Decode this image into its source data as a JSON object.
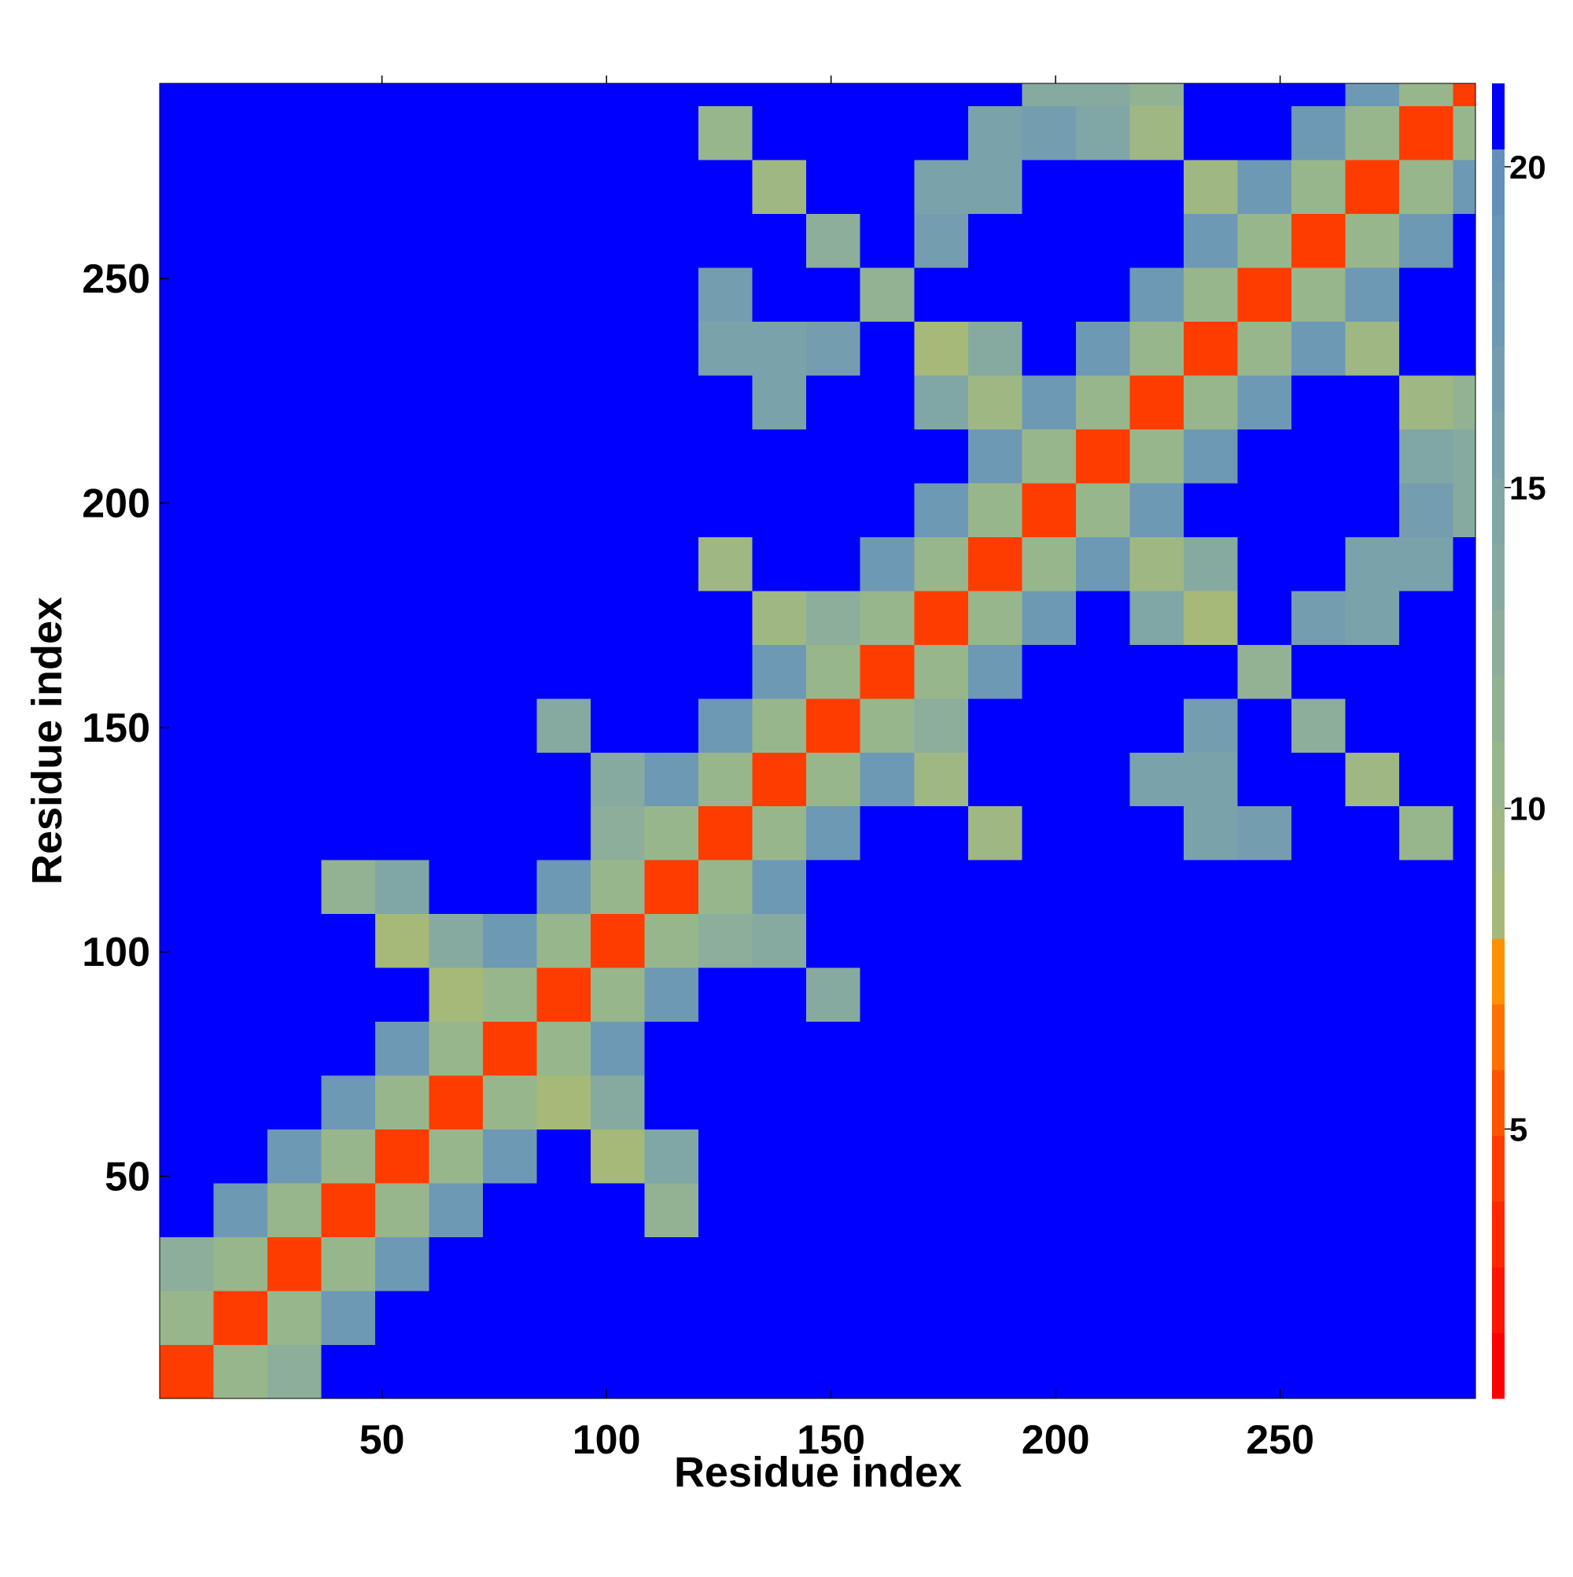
{
  "chart_data": {
    "type": "heatmap",
    "x_label": "Residue index",
    "y_label": "Residue index",
    "xlim": [
      0.5,
      293.5
    ],
    "ylim": [
      0.5,
      293.5
    ],
    "xticks": [
      50,
      100,
      150,
      200,
      250
    ],
    "yticks": [
      50,
      100,
      150,
      200,
      250
    ],
    "x_bins": [
      0.5,
      12.5,
      24.5,
      36.5,
      48.5,
      60.5,
      72.5,
      84.5,
      96.5,
      108.5,
      120.5,
      132.5,
      144.5,
      156.5,
      168.5,
      180.5,
      192.5,
      204.5,
      216.5,
      228.5,
      240.5,
      252.5,
      264.5,
      276.5,
      288.5,
      293.5
    ],
    "y_bins": [
      0.5,
      12.5,
      24.5,
      36.5,
      48.5,
      60.5,
      72.5,
      84.5,
      96.5,
      108.5,
      120.5,
      132.5,
      144.5,
      156.5,
      168.5,
      180.5,
      192.5,
      204.5,
      216.5,
      228.5,
      240.5,
      252.5,
      264.5,
      276.5,
      288.5,
      293.5
    ],
    "values": [
      [
        4,
        11,
        13,
        21,
        21,
        21,
        21,
        21,
        21,
        21,
        21,
        21,
        21,
        21,
        21,
        21,
        21,
        21,
        21,
        21,
        21,
        21,
        21,
        21,
        21
      ],
      [
        11,
        4,
        11,
        18,
        21,
        21,
        21,
        21,
        21,
        21,
        21,
        21,
        21,
        21,
        21,
        21,
        21,
        21,
        21,
        21,
        21,
        21,
        21,
        21,
        21
      ],
      [
        13,
        11,
        4,
        11,
        18,
        21,
        21,
        21,
        21,
        21,
        21,
        21,
        21,
        21,
        21,
        21,
        21,
        21,
        21,
        21,
        21,
        21,
        21,
        21,
        21
      ],
      [
        21,
        18,
        11,
        4,
        11,
        18,
        21,
        21,
        21,
        12,
        21,
        21,
        21,
        21,
        21,
        21,
        21,
        21,
        21,
        21,
        21,
        21,
        21,
        21,
        21
      ],
      [
        21,
        21,
        18,
        11,
        4,
        11,
        18,
        21,
        8,
        15,
        21,
        21,
        21,
        21,
        21,
        21,
        21,
        21,
        21,
        21,
        21,
        21,
        21,
        21,
        21
      ],
      [
        21,
        21,
        21,
        18,
        11,
        4,
        11,
        9,
        14,
        21,
        21,
        21,
        21,
        21,
        21,
        21,
        21,
        21,
        21,
        21,
        21,
        21,
        21,
        21,
        21
      ],
      [
        21,
        21,
        21,
        21,
        18,
        11,
        4,
        11,
        18,
        21,
        21,
        21,
        21,
        21,
        21,
        21,
        21,
        21,
        21,
        21,
        21,
        21,
        21,
        21,
        21
      ],
      [
        21,
        21,
        21,
        21,
        21,
        9,
        11,
        4,
        11,
        18,
        21,
        21,
        14,
        21,
        21,
        21,
        21,
        21,
        21,
        21,
        21,
        21,
        21,
        21,
        21
      ],
      [
        21,
        21,
        21,
        21,
        8,
        14,
        18,
        11,
        4,
        11,
        13,
        14,
        21,
        21,
        21,
        21,
        21,
        21,
        21,
        21,
        21,
        21,
        21,
        21,
        21
      ],
      [
        21,
        21,
        21,
        12,
        15,
        21,
        21,
        18,
        11,
        4,
        11,
        18,
        21,
        21,
        21,
        21,
        21,
        21,
        21,
        21,
        21,
        21,
        21,
        21,
        21
      ],
      [
        21,
        21,
        21,
        21,
        21,
        21,
        21,
        21,
        13,
        11,
        4,
        11,
        18,
        21,
        21,
        10,
        21,
        21,
        21,
        16,
        17,
        21,
        21,
        11,
        21
      ],
      [
        21,
        21,
        21,
        21,
        21,
        21,
        21,
        21,
        14,
        18,
        11,
        4,
        11,
        18,
        10,
        21,
        21,
        21,
        16,
        16,
        21,
        21,
        10,
        21,
        21
      ],
      [
        21,
        21,
        21,
        21,
        21,
        21,
        21,
        14,
        21,
        21,
        18,
        11,
        4,
        11,
        13,
        21,
        21,
        21,
        21,
        17,
        21,
        13,
        21,
        21,
        21
      ],
      [
        21,
        21,
        21,
        21,
        21,
        21,
        21,
        21,
        21,
        21,
        21,
        18,
        11,
        4,
        11,
        18,
        21,
        21,
        21,
        21,
        12,
        21,
        21,
        21,
        21
      ],
      [
        21,
        21,
        21,
        21,
        21,
        21,
        21,
        21,
        21,
        21,
        21,
        10,
        13,
        11,
        4,
        11,
        18,
        21,
        15,
        9,
        21,
        17,
        16,
        21,
        21
      ],
      [
        21,
        21,
        21,
        21,
        21,
        21,
        21,
        21,
        21,
        21,
        10,
        21,
        21,
        18,
        11,
        4,
        11,
        18,
        10,
        14,
        21,
        21,
        16,
        16,
        21
      ],
      [
        21,
        21,
        21,
        21,
        21,
        21,
        21,
        21,
        21,
        21,
        21,
        21,
        21,
        21,
        18,
        11,
        4,
        11,
        18,
        21,
        21,
        21,
        21,
        17,
        14
      ],
      [
        21,
        21,
        21,
        21,
        21,
        21,
        21,
        21,
        21,
        21,
        21,
        21,
        21,
        21,
        21,
        18,
        11,
        4,
        11,
        18,
        21,
        21,
        21,
        15,
        14
      ],
      [
        21,
        21,
        21,
        21,
        21,
        21,
        21,
        21,
        21,
        21,
        21,
        16,
        21,
        21,
        15,
        10,
        18,
        11,
        4,
        11,
        18,
        21,
        21,
        10,
        12
      ],
      [
        21,
        21,
        21,
        21,
        21,
        21,
        21,
        21,
        21,
        21,
        16,
        16,
        17,
        21,
        9,
        14,
        21,
        18,
        11,
        4,
        11,
        18,
        10,
        21,
        21
      ],
      [
        21,
        21,
        21,
        21,
        21,
        21,
        21,
        21,
        21,
        21,
        17,
        21,
        21,
        12,
        21,
        21,
        21,
        21,
        18,
        11,
        4,
        11,
        18,
        21,
        21
      ],
      [
        21,
        21,
        21,
        21,
        21,
        21,
        21,
        21,
        21,
        21,
        21,
        21,
        13,
        21,
        17,
        21,
        21,
        21,
        21,
        18,
        11,
        4,
        11,
        18,
        21
      ],
      [
        21,
        21,
        21,
        21,
        21,
        21,
        21,
        21,
        21,
        21,
        21,
        10,
        21,
        21,
        16,
        16,
        21,
        21,
        21,
        10,
        18,
        11,
        4,
        11,
        18
      ],
      [
        21,
        21,
        21,
        21,
        21,
        21,
        21,
        21,
        21,
        21,
        11,
        21,
        21,
        21,
        21,
        16,
        17,
        15,
        10,
        21,
        21,
        18,
        11,
        4,
        11
      ],
      [
        21,
        21,
        21,
        21,
        21,
        21,
        21,
        21,
        21,
        21,
        21,
        21,
        21,
        21,
        21,
        21,
        14,
        14,
        12,
        21,
        21,
        21,
        18,
        11,
        4
      ]
    ],
    "colorbar": {
      "range": [
        0.8,
        21.3
      ],
      "ticks": [
        5,
        10,
        15,
        20
      ],
      "colors": [
        "#ff0000",
        "#ff1400",
        "#ff2800",
        "#ff3c00",
        "#ff5500",
        "#ff7000",
        "#ff9000",
        "#a6b978",
        "#9fb883",
        "#98b68c",
        "#92b293",
        "#8cae9a",
        "#86aaa0",
        "#80a6a6",
        "#7aa2ab",
        "#749eb0",
        "#6e99b4",
        "#6895b8",
        "#6290bb",
        "#0000ff"
      ]
    }
  }
}
